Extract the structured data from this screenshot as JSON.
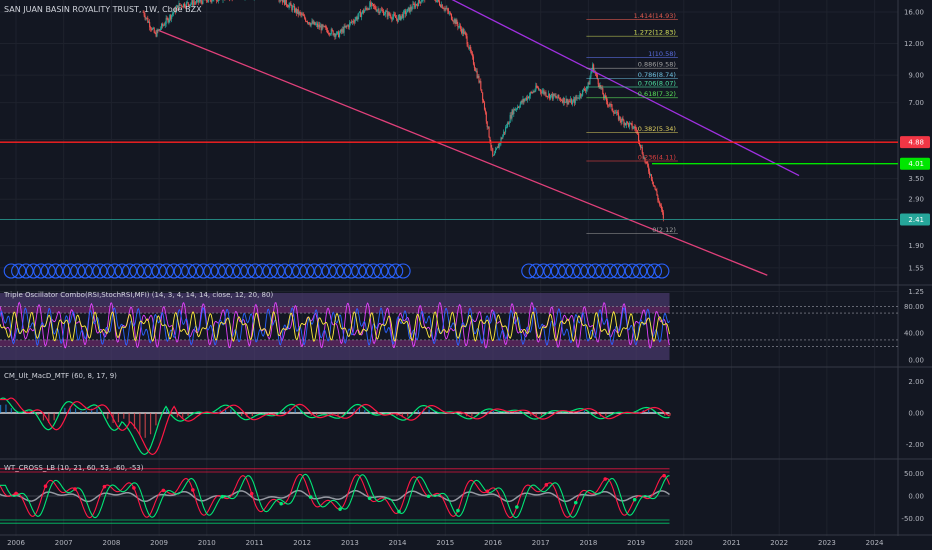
{
  "header": {
    "symbol_title": "SAN JUAN BASIN ROYALITY TRUST, 1W, Cboe BZX"
  },
  "colors": {
    "background": "#131722",
    "grid": "#1e222d",
    "up": "#26a69a",
    "down": "#ef5350",
    "text": "#b2b5be",
    "white": "#ffffff"
  },
  "chart_data": [
    {
      "type": "candlestick",
      "title": "SAN JUAN BASIN ROYALITY TRUST, 1W, Cboe BZX",
      "scale": "log",
      "ylim": [
        1.25,
        18
      ],
      "y_ticks": [
        "16.00",
        "12.00",
        "9.00",
        "7.00",
        "5.00",
        "3.50",
        "2.90",
        "2.41",
        "1.90",
        "1.55",
        "1.25"
      ],
      "x_ticks": [
        "2006",
        "2007",
        "2008",
        "2009",
        "2010",
        "2011",
        "2012",
        "2013",
        "2014",
        "2015",
        "2016",
        "2017",
        "2018",
        "2019",
        "2020",
        "2021",
        "2022",
        "2023",
        "2024"
      ],
      "price_path": [
        [
          "2008-09",
          16.0
        ],
        [
          "2008-12",
          13.0
        ],
        [
          "2009-06",
          17.0
        ],
        [
          "2010-06",
          18.5
        ],
        [
          "2011-06",
          19.0
        ],
        [
          "2012-03",
          14.5
        ],
        [
          "2012-10",
          13.0
        ],
        [
          "2013-06",
          17.0
        ],
        [
          "2014-01",
          15.0
        ],
        [
          "2014-09",
          19.0
        ],
        [
          "2015-01",
          16.5
        ],
        [
          "2015-06",
          13.0
        ],
        [
          "2015-10",
          8.0
        ],
        [
          "2016-01",
          4.2
        ],
        [
          "2016-06",
          6.5
        ],
        [
          "2016-12",
          8.0
        ],
        [
          "2017-03",
          7.5
        ],
        [
          "2017-09",
          7.0
        ],
        [
          "2018-01",
          8.2
        ],
        [
          "2018-02",
          9.8
        ],
        [
          "2018-05",
          7.3
        ],
        [
          "2018-09",
          6.0
        ],
        [
          "2019-01",
          5.5
        ],
        [
          "2019-03",
          4.2
        ],
        [
          "2019-05",
          3.5
        ],
        [
          "2019-08",
          2.41
        ]
      ],
      "price_labels": [
        {
          "text": "4.88",
          "value": 4.88,
          "color": "#f23645"
        },
        {
          "text": "4.01",
          "value": 4.01,
          "color": "#00e600"
        },
        {
          "text": "2.41",
          "value": 2.41,
          "color": "#26a69a"
        }
      ],
      "fibonacci": [
        {
          "label": "1.414(14.93)",
          "value": 14.93,
          "color": "#e05a4e"
        },
        {
          "label": "1.272(12.83)",
          "value": 12.83,
          "color": "#d4e05a"
        },
        {
          "label": "1(10.58)",
          "value": 10.58,
          "color": "#5a6ee0"
        },
        {
          "label": "0.886(9.58)",
          "value": 9.58,
          "color": "#a0a0a0"
        },
        {
          "label": "0.786(8.74)",
          "value": 8.74,
          "color": "#6ec0e0"
        },
        {
          "label": "0.706(8.07)",
          "value": 8.07,
          "color": "#4ee0a0"
        },
        {
          "label": "0.618(7.32)",
          "value": 7.32,
          "color": "#5ae05a"
        },
        {
          "label": "0.382(5.34)",
          "value": 5.34,
          "color": "#e0d060"
        },
        {
          "label": "0.236(4.11)",
          "value": 4.11,
          "color": "#e04040"
        },
        {
          "label": "0(2.12)",
          "value": 2.12,
          "color": "#a0a0a0"
        }
      ],
      "horizontal_lines": [
        {
          "value": 4.88,
          "color": "#ff2020"
        },
        {
          "value": 4.01,
          "color": "#00e600"
        },
        {
          "value": 2.41,
          "color": "#26a69a"
        }
      ],
      "trendlines": [
        {
          "from": [
            "2009-01",
            13.5
          ],
          "to": [
            "2021-10",
            1.45
          ],
          "color": "#e0407a"
        },
        {
          "from": [
            "2015-01",
            18.5
          ],
          "to": [
            "2022-06",
            3.6
          ],
          "color": "#a030e0"
        }
      ]
    },
    {
      "type": "line",
      "title": "Triple Oscillator Combo(RSI,StochRSI,MFI) (14, 3, 4, 14, 14, close, 12, 20, 80)",
      "ylim": [
        0,
        100
      ],
      "y_ticks": [
        "80.00",
        "40.00",
        "0.00"
      ],
      "bands": [
        80,
        70,
        30,
        20
      ]
    },
    {
      "type": "line",
      "title": "CM_Ult_MacD_MTF (60, 8, 17, 9)",
      "ylim": [
        -2.6,
        2.6
      ],
      "y_ticks": [
        "2.00",
        "0.00",
        "-2.00"
      ]
    },
    {
      "type": "line",
      "title": "WT_CROSS_LB (10, 21, 60, 53, -60, -53)",
      "ylim": [
        -75,
        75
      ],
      "y_ticks": [
        "50.00",
        "0.00",
        "-50.00"
      ],
      "levels": [
        60,
        53,
        -53,
        -60
      ]
    }
  ]
}
